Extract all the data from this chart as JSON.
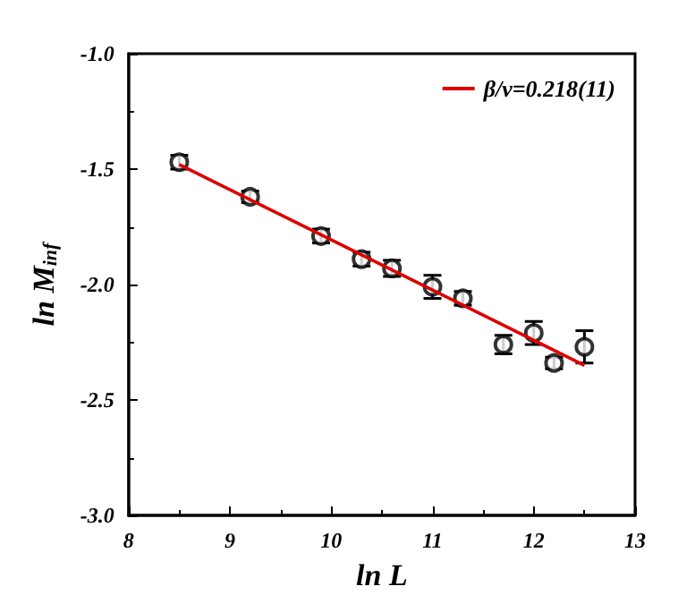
{
  "chart_data": {
    "type": "scatter",
    "xlabel": "ln L",
    "ylabel": "ln M$_{inf}$",
    "xlim": [
      8,
      13
    ],
    "xticks": [
      8,
      9,
      10,
      11,
      12,
      13
    ],
    "ylim": [
      -3,
      -1
    ],
    "yticks": [
      {
        "value": -3,
        "label": "-3.0"
      },
      {
        "value": -2.5,
        "label": "-2.5"
      },
      {
        "value": -2,
        "label": "-2.0"
      },
      {
        "value": -1.5,
        "label": "-1.5"
      },
      {
        "value": -1,
        "label": "-1.0"
      }
    ],
    "grid": false,
    "legend": "top right",
    "marker": "circle",
    "series": [
      {
        "color": "#000000",
        "x": [
          8.5,
          9.2,
          9.9,
          10.3,
          10.6,
          11.0,
          11.3,
          11.7,
          12.0,
          12.2,
          12.5
        ],
        "values": [
          -1.47,
          -1.62,
          -1.79,
          -1.89,
          -1.93,
          -2.01,
          -2.06,
          -2.26,
          -2.21,
          -2.34,
          -2.27
        ],
        "errors": [
          0.03,
          0.025,
          0.03,
          0.03,
          0.035,
          0.05,
          0.03,
          0.04,
          0.05,
          0.025,
          0.07
        ]
      },
      {
        "type": "line",
        "name": "β/ν=0.218(11)",
        "color": "#dd0000",
        "line_style": "solid",
        "marker": "none",
        "x": [
          8.5,
          12.5
        ],
        "values": [
          -1.48,
          -2.35
        ]
      }
    ]
  }
}
